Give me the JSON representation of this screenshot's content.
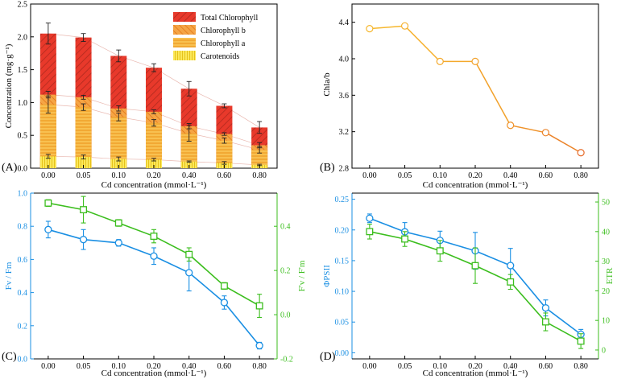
{
  "chart_data": [
    {
      "panel_label": "(A)",
      "type": "bar",
      "categories": [
        "0.00",
        "0.05",
        "0.10",
        "0.20",
        "0.40",
        "0.60",
        "0.80"
      ],
      "xlabel": "Cd concentration (mmol·L⁻¹)",
      "ylabel": "Concentration (mg·g⁻¹)",
      "ylim": [
        0,
        2.5
      ],
      "yticks": [
        "0.0",
        "0.5",
        "1.0",
        "1.5",
        "2.0",
        "2.5"
      ],
      "legend_position": "top-right",
      "series": [
        {
          "name": "Total Chlorophyll",
          "values": [
            2.05,
            1.99,
            1.71,
            1.53,
            1.21,
            0.95,
            0.62
          ],
          "errors": [
            0.16,
            0.06,
            0.09,
            0.06,
            0.11,
            0.03,
            0.09
          ],
          "color": "#e8392b"
        },
        {
          "name": "Chlorophyll b",
          "values": [
            1.12,
            1.08,
            0.91,
            0.86,
            0.64,
            0.52,
            0.35
          ],
          "errors": [
            0.05,
            0.03,
            0.04,
            0.03,
            0.04,
            0.02,
            0.04
          ],
          "color": "#f39236"
        },
        {
          "name": "Chlorophyll a",
          "values": [
            0.97,
            0.93,
            0.78,
            0.69,
            0.53,
            0.42,
            0.28
          ],
          "errors": [
            0.13,
            0.05,
            0.06,
            0.05,
            0.12,
            0.04,
            0.05
          ],
          "color": "#f6b132"
        },
        {
          "name": "Carotenoids",
          "values": [
            0.18,
            0.17,
            0.14,
            0.13,
            0.1,
            0.08,
            0.05
          ],
          "errors": [
            0.03,
            0.03,
            0.03,
            0.02,
            0.01,
            0.02,
            0.01
          ],
          "color": "#fbe23a"
        }
      ]
    },
    {
      "panel_label": "(B)",
      "type": "line",
      "categories": [
        "0.00",
        "0.05",
        "0.10",
        "0.20",
        "0.40",
        "0.60",
        "0.80"
      ],
      "xlabel": "Cd concentration (mmol·L⁻¹)",
      "ylabel": "Chla/b",
      "ylim": [
        2.8,
        4.6
      ],
      "yticks": [
        "2.8",
        "3.2",
        "3.6",
        "4.0",
        "4.4"
      ],
      "series": [
        {
          "name": "Chla/b",
          "values": [
            4.33,
            4.36,
            3.97,
            3.97,
            3.27,
            3.19,
            2.97
          ]
        }
      ]
    },
    {
      "panel_label": "(C)",
      "type": "line",
      "categories": [
        "0.00",
        "0.05",
        "0.10",
        "0.20",
        "0.40",
        "0.60",
        "0.80"
      ],
      "xlabel": "Cd concentration (mmol·L⁻¹)",
      "ylabel_left": "Fv / Fm",
      "ylabel_right": "F'v / F'm",
      "ylim_left": [
        0,
        1.0
      ],
      "yticks_left": [
        "0.0",
        "0.2",
        "0.4",
        "0.6",
        "0.8",
        "1.0"
      ],
      "ylim_right": [
        -0.2,
        0.55
      ],
      "yticks_right": [
        "-0.2",
        "0.0",
        "0.2",
        "0.4"
      ],
      "series": [
        {
          "name": "Fv/Fm",
          "axis": "left",
          "marker": "circle",
          "color": "#1a8fe3",
          "values": [
            0.78,
            0.72,
            0.7,
            0.62,
            0.52,
            0.34,
            0.08
          ],
          "errors": [
            0.05,
            0.06,
            0.02,
            0.05,
            0.11,
            0.04,
            0.02
          ]
        },
        {
          "name": "F'v/F'm",
          "axis": "left",
          "marker": "square",
          "color": "#3cbe1e",
          "values": [
            0.94,
            0.9,
            0.82,
            0.74,
            0.63,
            0.44,
            0.32
          ],
          "errors": [
            0.02,
            0.08,
            0.02,
            0.04,
            0.04,
            0.02,
            0.07
          ]
        }
      ]
    },
    {
      "panel_label": "(D)",
      "type": "line",
      "categories": [
        "0.00",
        "0.05",
        "0.10",
        "0.20",
        "0.40",
        "0.60",
        "0.80"
      ],
      "xlabel": "Cd concentration (mmol·L⁻¹)",
      "ylabel_left": "ΦPSII",
      "ylabel_right": "ETR",
      "ylim_left": [
        -0.01,
        0.26
      ],
      "yticks_left": [
        "0.00",
        "0.05",
        "0.10",
        "0.15",
        "0.20",
        "0.25"
      ],
      "ylim_right": [
        -3,
        53
      ],
      "yticks_right": [
        "0",
        "10",
        "20",
        "30",
        "40",
        "50"
      ],
      "series": [
        {
          "name": "ΦPSII",
          "axis": "left",
          "marker": "circle",
          "color": "#1a8fe3",
          "values": [
            0.219,
            0.197,
            0.183,
            0.166,
            0.142,
            0.073,
            0.03
          ],
          "errors": [
            0.007,
            0.015,
            0.015,
            0.03,
            0.028,
            0.013,
            0.008
          ]
        },
        {
          "name": "ETR",
          "axis": "right",
          "marker": "square",
          "color": "#3cbe1e",
          "values": [
            40.0,
            37.5,
            33.5,
            28.5,
            23.0,
            9.5,
            3.0
          ],
          "errors": [
            2.5,
            2.5,
            3.5,
            6.0,
            2.5,
            3.0,
            2.5
          ]
        }
      ]
    }
  ]
}
